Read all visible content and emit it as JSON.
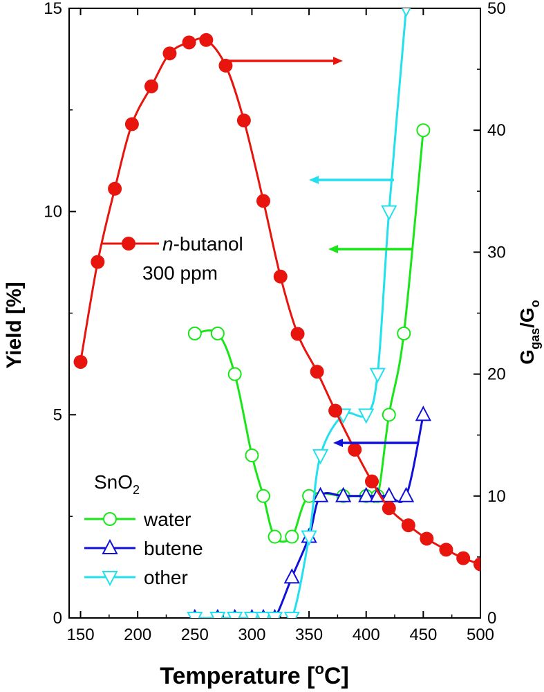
{
  "chart_data": {
    "type": "line",
    "xlabel": "Temperature [",
    "xlabel_sup": "o",
    "xlabel_end": "C]",
    "ylabel": "Yield [%]",
    "y2label": "G",
    "y2label_sub": "gas",
    "y2label_mid": "/G",
    "y2label_sub2": "o",
    "xlim": [
      140,
      500
    ],
    "ylim": [
      0,
      15
    ],
    "y2lim": [
      0,
      50
    ],
    "xticks": [
      150,
      200,
      250,
      300,
      350,
      400,
      450,
      500
    ],
    "yticks": [
      0,
      5,
      10,
      15
    ],
    "y2ticks": [
      0,
      10,
      20,
      30,
      40,
      50
    ],
    "series": [
      {
        "name": "n-butanol 300 ppm",
        "axis": "right",
        "color": "#e8140e",
        "marker": "filled-circle",
        "x": [
          150,
          165,
          180,
          195,
          212,
          228,
          245,
          260,
          277,
          293,
          310,
          325,
          340,
          357,
          373,
          390,
          405,
          420,
          437,
          453,
          470,
          485,
          500
        ],
        "y": [
          21.0,
          29.2,
          35.2,
          40.5,
          43.6,
          46.3,
          47.2,
          47.4,
          45.3,
          40.8,
          34.2,
          28.0,
          23.3,
          20.2,
          17.0,
          13.8,
          11.2,
          9.0,
          7.6,
          6.5,
          5.6,
          4.9,
          4.4
        ]
      },
      {
        "name": "water",
        "axis": "left",
        "color": "#19e619",
        "marker": "open-circle",
        "x": [
          250,
          270,
          285,
          300,
          310,
          320,
          335,
          350,
          380,
          400,
          410,
          420,
          433,
          450
        ],
        "y": [
          7.0,
          7.0,
          6.0,
          4.0,
          3.0,
          2.0,
          2.0,
          3.0,
          3.0,
          3.0,
          3.0,
          5.0,
          7.0,
          12.0
        ]
      },
      {
        "name": "butene",
        "axis": "left",
        "color": "#1010d8",
        "marker": "open-triangle-up",
        "x": [
          250,
          270,
          285,
          300,
          310,
          320,
          335,
          350,
          360,
          380,
          400,
          410,
          420,
          435,
          450
        ],
        "y": [
          0.0,
          0.0,
          0.0,
          0.0,
          0.0,
          0.0,
          1.0,
          2.0,
          3.0,
          3.0,
          3.0,
          3.0,
          3.0,
          3.0,
          5.0
        ]
      },
      {
        "name": "other",
        "axis": "left",
        "color": "#22e0ee",
        "marker": "open-triangle-down",
        "x": [
          250,
          270,
          285,
          300,
          310,
          320,
          335,
          350,
          360,
          380,
          400,
          410,
          420,
          435
        ],
        "y": [
          0.0,
          0.0,
          0.0,
          0.0,
          0.0,
          0.0,
          0.0,
          2.0,
          4.0,
          5.0,
          5.0,
          6.0,
          10.0,
          15.0
        ]
      }
    ],
    "annotations": {
      "butanol_label": "n",
      "butanol_label_rest": "-butanol",
      "butanol_conc": "300 ppm",
      "legend_title": "SnO",
      "legend_title_sub": "2",
      "legend_items": [
        "water",
        "butene",
        "other"
      ]
    }
  }
}
